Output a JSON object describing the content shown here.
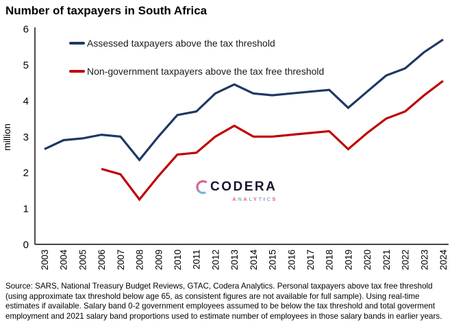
{
  "title": "Number of taxpayers in South Africa",
  "y_axis_label": "million",
  "legend": [
    {
      "label": "Assessed taxpayers above the tax threshold",
      "color": "#1f3864"
    },
    {
      "label": "Non-government taxpayers above the tax free threshold",
      "color": "#c00000"
    }
  ],
  "logo": {
    "word": "CODERA",
    "sub": "ANALYTICS",
    "pink": "#e0607f",
    "blue": "#6fb9d8",
    "dark": "#16162e"
  },
  "footer": "Source: SARS, National Treasury Budget Reviews, GTAC, Codera Analytics. Personal taxpayers above tax free threshold (using approximate tax threshold below age 65, as consistent figures are not available for full sample). Using real-time estimates if available. Salary band 0-2 government employees assumed to be below the tax threshold and total goverment employment and 2021 salary band proportions used to estimate number of employees in those salary bands in earlier years.",
  "chart_data": {
    "type": "line",
    "title": "Number of taxpayers in South Africa",
    "xlabel": "",
    "ylabel": "million",
    "ylim": [
      0,
      6
    ],
    "y_ticks": [
      0,
      1,
      2,
      3,
      4,
      5,
      6
    ],
    "grid": false,
    "legend_position": "top-left-inside",
    "x": [
      2003,
      2004,
      2005,
      2006,
      2007,
      2008,
      2009,
      2010,
      2011,
      2012,
      2013,
      2014,
      2015,
      2016,
      2017,
      2018,
      2019,
      2020,
      2021,
      2022,
      2023,
      2024
    ],
    "series": [
      {
        "name": "Assessed taxpayers above the tax threshold",
        "color": "#1f3864",
        "values": [
          2.65,
          2.9,
          2.95,
          3.05,
          3.0,
          2.35,
          3.0,
          3.6,
          3.7,
          4.2,
          4.45,
          4.2,
          4.15,
          4.2,
          4.25,
          4.3,
          3.8,
          4.25,
          4.7,
          4.9,
          5.35,
          5.7
        ]
      },
      {
        "name": "Non-government taxpayers above the tax free threshold",
        "color": "#c00000",
        "values": [
          null,
          null,
          null,
          2.1,
          1.95,
          1.25,
          1.9,
          2.5,
          2.55,
          3.0,
          3.3,
          3.0,
          3.0,
          3.05,
          3.1,
          3.15,
          2.65,
          3.1,
          3.5,
          3.7,
          4.15,
          4.55
        ]
      }
    ]
  }
}
